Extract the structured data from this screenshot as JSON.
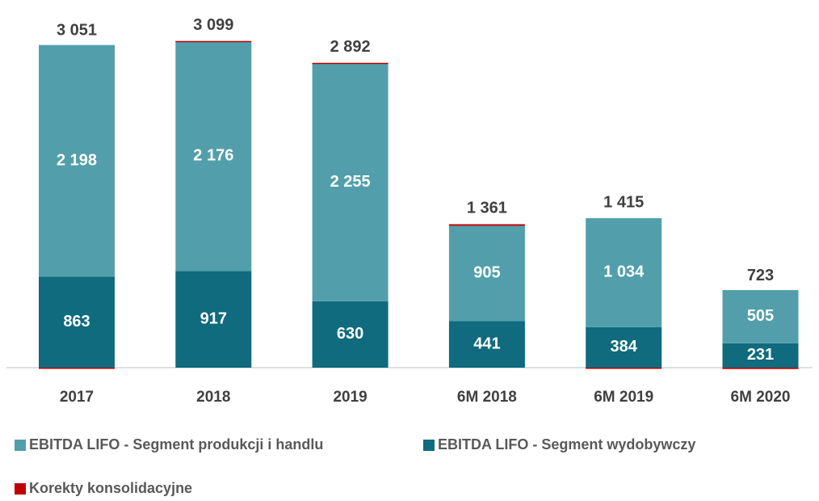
{
  "chart_data": {
    "type": "stacked_bar",
    "categories": [
      "2017",
      "2018",
      "2019",
      "6M 2018",
      "6M 2019",
      "6M 2020"
    ],
    "series": [
      {
        "name": "EBITDA LIFO - Segment wydobywczy",
        "color": "#0f6b7d",
        "values": [
          863,
          917,
          630,
          441,
          384,
          231
        ],
        "value_labels": [
          "863",
          "917",
          "630",
          "441",
          "384",
          "231"
        ]
      },
      {
        "name": "EBITDA LIFO - Segment produkcji i handlu",
        "color": "#529fab",
        "values": [
          2198,
          2176,
          2255,
          905,
          1034,
          505
        ],
        "value_labels": [
          "2 198",
          "2 176",
          "2 255",
          "905",
          "1 034",
          "505"
        ]
      },
      {
        "name": "Korekty konsolidacyjne",
        "color": "#c00000",
        "values": [
          -10,
          6,
          7,
          15,
          -3,
          -13
        ]
      }
    ],
    "totals": [
      3051,
      3099,
      2892,
      1361,
      1415,
      723
    ],
    "total_labels": [
      "3 051",
      "3 099",
      "2 892",
      "1 361",
      "1 415",
      "723"
    ]
  }
}
